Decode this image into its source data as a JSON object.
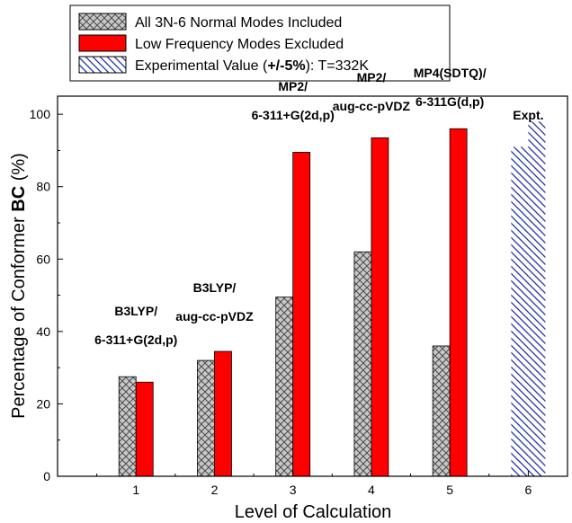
{
  "chart_data": {
    "type": "bar",
    "xlabel": "Level of Calculation",
    "ylabel_prefix": "Percentage of Conformer ",
    "ylabel_bold": "BC",
    "ylabel_suffix": " (%)",
    "xlim": [
      0,
      6.5
    ],
    "ylim": [
      0,
      105
    ],
    "xticks": [
      1,
      2,
      3,
      4,
      5,
      6
    ],
    "yticks": [
      0,
      20,
      40,
      60,
      80,
      100
    ],
    "grid": false,
    "legend_position": "top",
    "legend": [
      {
        "pattern": "crosshatch-gray",
        "parts": [
          {
            "text": "All 3N-6 Normal Modes Included",
            "bold": false
          }
        ]
      },
      {
        "pattern": "solid-red",
        "parts": [
          {
            "text": "Low Frequency Modes Excluded",
            "bold": false
          }
        ]
      },
      {
        "pattern": "diagonal-blue",
        "parts": [
          {
            "text": "Experimental Value (",
            "bold": false
          },
          {
            "text": "+/-5%",
            "bold": true
          },
          {
            "text": "): T=332K",
            "bold": false
          }
        ]
      }
    ],
    "series": [
      {
        "name": "All 3N-6 Normal Modes Included",
        "x": [
          1,
          2,
          3,
          4,
          5
        ],
        "values": [
          27.5,
          32,
          49.5,
          62,
          36
        ],
        "color": "#c8c8c8"
      },
      {
        "name": "Low Frequency Modes Excluded",
        "x": [
          1,
          2,
          3,
          4,
          5
        ],
        "values": [
          26,
          34.5,
          89.5,
          93.5,
          96
        ],
        "color": "#ff0000"
      },
      {
        "name": "Experimental Value (+/-5%): T=332K",
        "x": [
          6
        ],
        "low": [
          91
        ],
        "high": [
          98
        ],
        "color": "#1f2fa8"
      }
    ],
    "annotations": [
      {
        "x": 1,
        "lines": [
          "B3LYP/",
          "6-311+G(2d,p)"
        ]
      },
      {
        "x": 2,
        "lines": [
          "B3LYP/",
          "aug-cc-pVDZ"
        ]
      },
      {
        "x": 3,
        "lines": [
          "MP2/",
          "6-311+G(2d,p)"
        ]
      },
      {
        "x": 4,
        "lines": [
          "MP2/",
          "aug-cc-pVDZ"
        ]
      },
      {
        "x": 5,
        "lines": [
          "MP4(SDTQ)/",
          "6-311G(d,p)"
        ]
      },
      {
        "x": 6,
        "lines": [
          "Expt."
        ]
      }
    ]
  }
}
